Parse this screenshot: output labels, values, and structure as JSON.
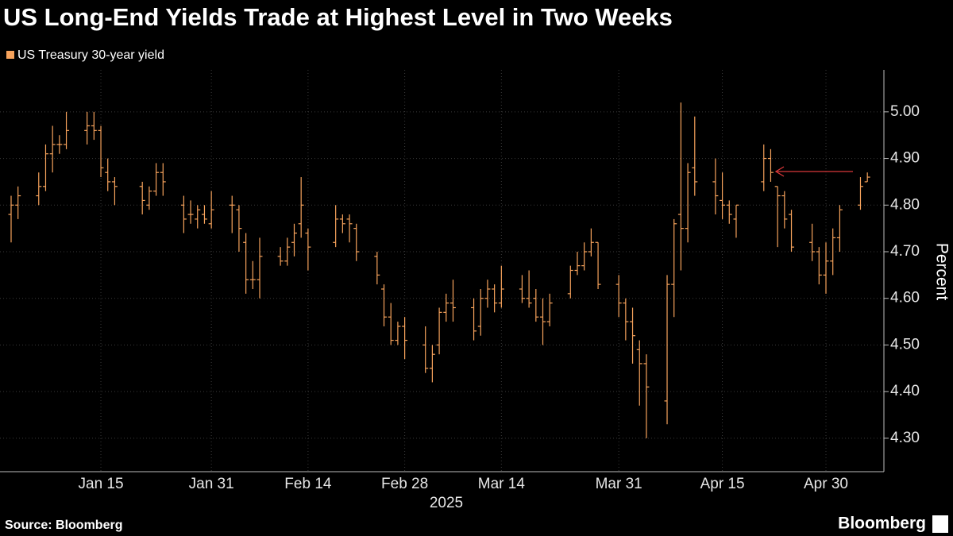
{
  "chart_data": {
    "type": "ohlc",
    "title": "US Long-End Yields Trade at Highest Level in Two Weeks",
    "series_name": "US Treasury 30-year yield",
    "color": "#f7a35c",
    "ylabel": "Percent",
    "xlabel": "2025",
    "source": "Source: Bloomberg",
    "brand": "Bloomberg",
    "grid": true,
    "ylim": [
      4.23,
      5.09
    ],
    "yticks": [
      {
        "value": 4.3,
        "label": "4.30"
      },
      {
        "value": 4.4,
        "label": "4.40"
      },
      {
        "value": 4.5,
        "label": "4.50"
      },
      {
        "value": 4.6,
        "label": "4.60"
      },
      {
        "value": 4.7,
        "label": "4.70"
      },
      {
        "value": 4.8,
        "label": "4.80"
      },
      {
        "value": 4.9,
        "label": "4.90"
      },
      {
        "value": 5.0,
        "label": "5.00"
      }
    ],
    "categories": [
      null,
      null,
      null,
      null,
      null,
      null,
      null,
      null,
      null,
      null,
      null,
      null,
      null,
      null,
      "Jan 15",
      null,
      null,
      null,
      null,
      null,
      null,
      null,
      null,
      null,
      null,
      null,
      null,
      null,
      null,
      null,
      "Jan 31",
      null,
      null,
      null,
      null,
      null,
      null,
      null,
      null,
      null,
      null,
      null,
      null,
      null,
      "Feb 14",
      null,
      null,
      null,
      null,
      null,
      null,
      null,
      null,
      null,
      null,
      null,
      null,
      null,
      "Feb 28",
      null,
      null,
      null,
      null,
      null,
      null,
      null,
      null,
      null,
      null,
      null,
      null,
      null,
      "Mar 14",
      null,
      null,
      null,
      null,
      null,
      null,
      null,
      null,
      null,
      null,
      null,
      null,
      null,
      null,
      null,
      null,
      "Mar 31",
      null,
      null,
      null,
      null,
      null,
      null,
      null,
      null,
      null,
      null,
      null,
      null,
      null,
      null,
      "Apr 15",
      null,
      null,
      null,
      null,
      null,
      null,
      null,
      null,
      null,
      null,
      null,
      null,
      null,
      null,
      "Apr 30",
      null,
      null,
      null,
      null,
      null,
      null
    ],
    "open": [
      null,
      4.78,
      4.8,
      null,
      null,
      4.82,
      4.84,
      4.91,
      4.93,
      4.93,
      null,
      null,
      4.96,
      4.97,
      4.96,
      4.87,
      4.85,
      null,
      null,
      null,
      4.84,
      4.8,
      4.83,
      4.87,
      null,
      null,
      4.8,
      4.78,
      4.77,
      4.78,
      4.76,
      null,
      null,
      4.8,
      4.79,
      4.72,
      4.64,
      4.64,
      null,
      null,
      4.69,
      4.68,
      4.72,
      4.76,
      4.74,
      null,
      null,
      null,
      4.72,
      4.77,
      4.77,
      4.75,
      null,
      null,
      4.69,
      4.62,
      4.56,
      4.51,
      4.54,
      null,
      null,
      4.5,
      4.45,
      4.5,
      4.57,
      4.59,
      null,
      null,
      4.58,
      4.54,
      4.6,
      4.62,
      4.59,
      null,
      null,
      4.62,
      4.6,
      4.6,
      4.56,
      4.55,
      null,
      null,
      4.61,
      4.66,
      4.67,
      4.7,
      4.72,
      null,
      null,
      4.63,
      4.59,
      4.55,
      4.49,
      4.46,
      null,
      null,
      4.38,
      4.63,
      4.78,
      4.75,
      4.88,
      null,
      null,
      4.85,
      4.81,
      4.8,
      4.77,
      null,
      null,
      null,
      4.85,
      4.9,
      4.84,
      4.82,
      4.78,
      null,
      null,
      4.72,
      4.7,
      4.65,
      4.68,
      4.73,
      null,
      null,
      4.8,
      4.85
    ],
    "high": [
      null,
      4.82,
      4.84,
      null,
      null,
      4.87,
      4.93,
      4.97,
      4.95,
      5.0,
      null,
      null,
      5.0,
      5.0,
      4.97,
      4.9,
      4.86,
      null,
      null,
      null,
      4.85,
      4.84,
      4.89,
      4.89,
      null,
      null,
      4.82,
      4.81,
      4.8,
      4.8,
      4.83,
      null,
      null,
      4.82,
      4.8,
      4.74,
      4.68,
      4.73,
      null,
      null,
      4.71,
      4.73,
      4.76,
      4.86,
      4.75,
      null,
      null,
      null,
      4.8,
      4.78,
      4.78,
      4.76,
      null,
      null,
      4.7,
      4.63,
      4.59,
      4.55,
      4.56,
      null,
      null,
      4.54,
      4.5,
      4.58,
      4.61,
      4.64,
      null,
      null,
      4.6,
      4.62,
      4.64,
      4.63,
      4.67,
      null,
      null,
      4.65,
      4.66,
      4.62,
      4.6,
      4.61,
      null,
      null,
      4.67,
      4.7,
      4.72,
      4.75,
      4.72,
      null,
      null,
      4.65,
      4.6,
      4.58,
      4.51,
      4.48,
      null,
      null,
      4.65,
      4.77,
      5.02,
      4.89,
      4.99,
      null,
      null,
      4.9,
      4.87,
      4.81,
      4.8,
      null,
      null,
      null,
      4.93,
      4.92,
      4.84,
      4.83,
      4.79,
      null,
      null,
      4.76,
      4.71,
      4.72,
      4.75,
      4.8,
      null,
      null,
      4.86,
      4.87
    ],
    "low": [
      null,
      4.72,
      4.77,
      null,
      null,
      4.8,
      4.83,
      4.87,
      4.91,
      4.92,
      null,
      null,
      4.93,
      4.94,
      4.86,
      4.83,
      4.8,
      null,
      null,
      null,
      4.78,
      4.79,
      4.82,
      4.82,
      null,
      null,
      4.74,
      4.76,
      4.75,
      4.76,
      4.75,
      null,
      null,
      4.74,
      4.7,
      4.61,
      4.62,
      4.6,
      null,
      null,
      4.67,
      4.67,
      4.69,
      4.73,
      4.66,
      null,
      null,
      null,
      4.71,
      4.74,
      4.72,
      4.68,
      null,
      null,
      4.63,
      4.54,
      4.5,
      4.5,
      4.47,
      null,
      null,
      4.44,
      4.42,
      4.48,
      4.55,
      4.55,
      null,
      null,
      4.51,
      4.52,
      4.58,
      4.57,
      4.58,
      null,
      null,
      4.59,
      4.58,
      4.55,
      4.5,
      4.54,
      null,
      null,
      4.6,
      4.65,
      4.66,
      4.69,
      4.62,
      null,
      null,
      4.56,
      4.51,
      4.46,
      4.37,
      4.3,
      null,
      null,
      4.33,
      4.56,
      4.66,
      4.72,
      4.82,
      null,
      null,
      4.78,
      4.77,
      4.76,
      4.73,
      null,
      null,
      null,
      4.83,
      4.85,
      4.71,
      4.75,
      4.7,
      null,
      null,
      4.68,
      4.63,
      4.61,
      4.65,
      4.7,
      null,
      null,
      4.79,
      4.85
    ],
    "close": [
      null,
      4.8,
      4.82,
      null,
      null,
      4.84,
      4.91,
      4.93,
      4.93,
      4.96,
      null,
      null,
      4.97,
      4.96,
      4.88,
      4.85,
      4.84,
      null,
      null,
      null,
      4.81,
      4.83,
      4.87,
      4.85,
      null,
      null,
      4.77,
      4.78,
      4.79,
      4.77,
      4.79,
      null,
      null,
      4.8,
      4.75,
      4.64,
      4.64,
      4.69,
      null,
      null,
      4.68,
      4.71,
      4.74,
      4.8,
      4.71,
      null,
      null,
      null,
      4.77,
      4.76,
      4.76,
      4.7,
      null,
      null,
      4.65,
      4.56,
      4.51,
      4.54,
      4.51,
      null,
      null,
      4.45,
      4.48,
      4.57,
      4.59,
      4.58,
      null,
      null,
      4.53,
      4.6,
      4.62,
      4.59,
      4.62,
      null,
      null,
      4.6,
      4.59,
      4.56,
      4.55,
      4.59,
      null,
      null,
      4.66,
      4.67,
      4.7,
      4.72,
      4.63,
      null,
      null,
      4.59,
      4.55,
      4.52,
      4.46,
      4.41,
      null,
      null,
      4.63,
      4.76,
      4.75,
      4.87,
      4.85,
      null,
      null,
      4.82,
      4.8,
      4.78,
      4.8,
      null,
      null,
      null,
      4.9,
      4.87,
      4.82,
      4.77,
      4.71,
      null,
      null,
      4.7,
      4.65,
      4.68,
      4.73,
      4.79,
      null,
      null,
      4.84,
      4.86
    ]
  }
}
